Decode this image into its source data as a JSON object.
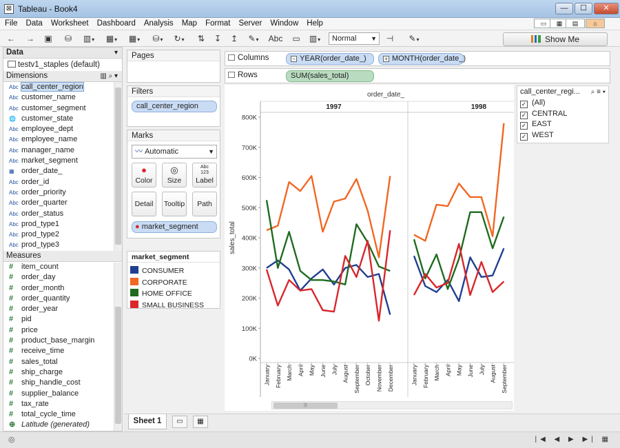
{
  "window": {
    "app_icon": "⊠",
    "title": "Tableau - Book4",
    "minimize": "—",
    "maximize": "☐",
    "close": "✕"
  },
  "menu": [
    "File",
    "Data",
    "Worksheet",
    "Dashboard",
    "Analysis",
    "Map",
    "Format",
    "Server",
    "Window",
    "Help"
  ],
  "toolbar": {
    "fit_select": "Normal",
    "abc_label": "Abc",
    "show_me": "Show Me"
  },
  "data_pane": {
    "header": "Data",
    "datasource": "testv1_staples (default)",
    "dimensions_header": "Dimensions",
    "dimensions": [
      {
        "type": "Abc",
        "name": "call_center_region",
        "selected": true
      },
      {
        "type": "Abc",
        "name": "customer_name"
      },
      {
        "type": "Abc",
        "name": "customer_segment"
      },
      {
        "type": "globe",
        "name": "customer_state"
      },
      {
        "type": "Abc",
        "name": "employee_dept"
      },
      {
        "type": "Abc",
        "name": "employee_name"
      },
      {
        "type": "Abc",
        "name": "manager_name"
      },
      {
        "type": "Abc",
        "name": "market_segment"
      },
      {
        "type": "date",
        "name": "order_date_"
      },
      {
        "type": "Abc",
        "name": "order_id"
      },
      {
        "type": "Abc",
        "name": "order_priority"
      },
      {
        "type": "Abc",
        "name": "order_quarter"
      },
      {
        "type": "Abc",
        "name": "order_status"
      },
      {
        "type": "Abc",
        "name": "prod_type1"
      },
      {
        "type": "Abc",
        "name": "prod_type2"
      },
      {
        "type": "Abc",
        "name": "prod_type3"
      }
    ],
    "measures_header": "Measures",
    "measures": [
      {
        "name": "item_count"
      },
      {
        "name": "order_day"
      },
      {
        "name": "order_month"
      },
      {
        "name": "order_quantity"
      },
      {
        "name": "order_year"
      },
      {
        "name": "pid"
      },
      {
        "name": "price"
      },
      {
        "name": "product_base_margin"
      },
      {
        "name": "receive_time"
      },
      {
        "name": "sales_total"
      },
      {
        "name": "ship_charge"
      },
      {
        "name": "ship_handle_cost"
      },
      {
        "name": "supplier_balance"
      },
      {
        "name": "tax_rate"
      },
      {
        "name": "total_cycle_time"
      },
      {
        "name": "Latitude (generated)",
        "italic": true,
        "geo": true
      }
    ]
  },
  "pages": {
    "title": "Pages"
  },
  "filters": {
    "title": "Filters",
    "pill": "call_center_region"
  },
  "marks": {
    "title": "Marks",
    "type": "Automatic",
    "buttons": [
      {
        "label": "Color"
      },
      {
        "label": "Size"
      },
      {
        "label": "Label",
        "icon": "Abc\n123"
      },
      {
        "label": "Detail"
      },
      {
        "label": "Tooltip"
      },
      {
        "label": "Path"
      }
    ],
    "color_pill": "market_segment"
  },
  "legend": {
    "title": "market_segment",
    "items": [
      {
        "name": "CONSUMER",
        "color": "#1f3f8f"
      },
      {
        "name": "CORPORATE",
        "color": "#f26722"
      },
      {
        "name": "HOME OFFICE",
        "color": "#1f6b1f"
      },
      {
        "name": "SMALL BUSINESS",
        "color": "#d9262b"
      }
    ]
  },
  "shelves": {
    "columns_label": "Columns",
    "columns": [
      "YEAR(order_date_)",
      "MONTH(order_date_)"
    ],
    "rows_label": "Rows",
    "rows": [
      "SUM(sales_total)"
    ]
  },
  "quick_filter": {
    "title": "call_center_regi...",
    "options": [
      {
        "label": "(All)",
        "checked": true
      },
      {
        "label": "CENTRAL",
        "checked": true
      },
      {
        "label": "EAST",
        "checked": true
      },
      {
        "label": "WEST",
        "checked": true
      }
    ]
  },
  "sheet_tab": "Sheet 1",
  "chart_data": {
    "type": "line",
    "title": "order_date_",
    "ylabel": "sales_total",
    "ylim": [
      0,
      800000
    ],
    "yticks": [
      "0K",
      "100K",
      "200K",
      "300K",
      "400K",
      "500K",
      "600K",
      "700K",
      "800K"
    ],
    "panels": [
      {
        "label": "1997",
        "categories": [
          "January",
          "February",
          "March",
          "April",
          "May",
          "June",
          "July",
          "August",
          "September",
          "October",
          "November",
          "December"
        ],
        "series": [
          {
            "name": "CONSUMER",
            "values": [
              300000,
              325000,
              295000,
              225000,
              265000,
              295000,
              245000,
              300000,
              310000,
              270000,
              280000,
              145000
            ]
          },
          {
            "name": "CORPORATE",
            "values": [
              425000,
              440000,
              585000,
              555000,
              605000,
              420000,
              520000,
              530000,
              595000,
              490000,
              335000,
              605000
            ]
          },
          {
            "name": "HOME OFFICE",
            "values": [
              525000,
              300000,
              420000,
              290000,
              260000,
              260000,
              255000,
              245000,
              445000,
              385000,
              305000,
              290000
            ]
          },
          {
            "name": "SMALL BUSINESS",
            "values": [
              295000,
              175000,
              260000,
              225000,
              230000,
              160000,
              155000,
              340000,
              270000,
              390000,
              125000,
              425000
            ]
          }
        ]
      },
      {
        "label": "1998",
        "categories": [
          "January",
          "February",
          "March",
          "April",
          "May",
          "June",
          "July",
          "August",
          "September"
        ],
        "series": [
          {
            "name": "CONSUMER",
            "values": [
              340000,
              240000,
              220000,
              260000,
              190000,
              335000,
              270000,
              275000,
              365000
            ]
          },
          {
            "name": "CORPORATE",
            "values": [
              410000,
              390000,
              510000,
              505000,
              580000,
              535000,
              535000,
              405000,
              780000
            ]
          },
          {
            "name": "HOME OFFICE",
            "values": [
              395000,
              265000,
              345000,
              230000,
              330000,
              485000,
              485000,
              365000,
              470000
            ]
          },
          {
            "name": "SMALL BUSINESS",
            "values": [
              210000,
              280000,
              235000,
              250000,
              380000,
              210000,
              320000,
              220000,
              255000
            ]
          }
        ]
      }
    ]
  }
}
